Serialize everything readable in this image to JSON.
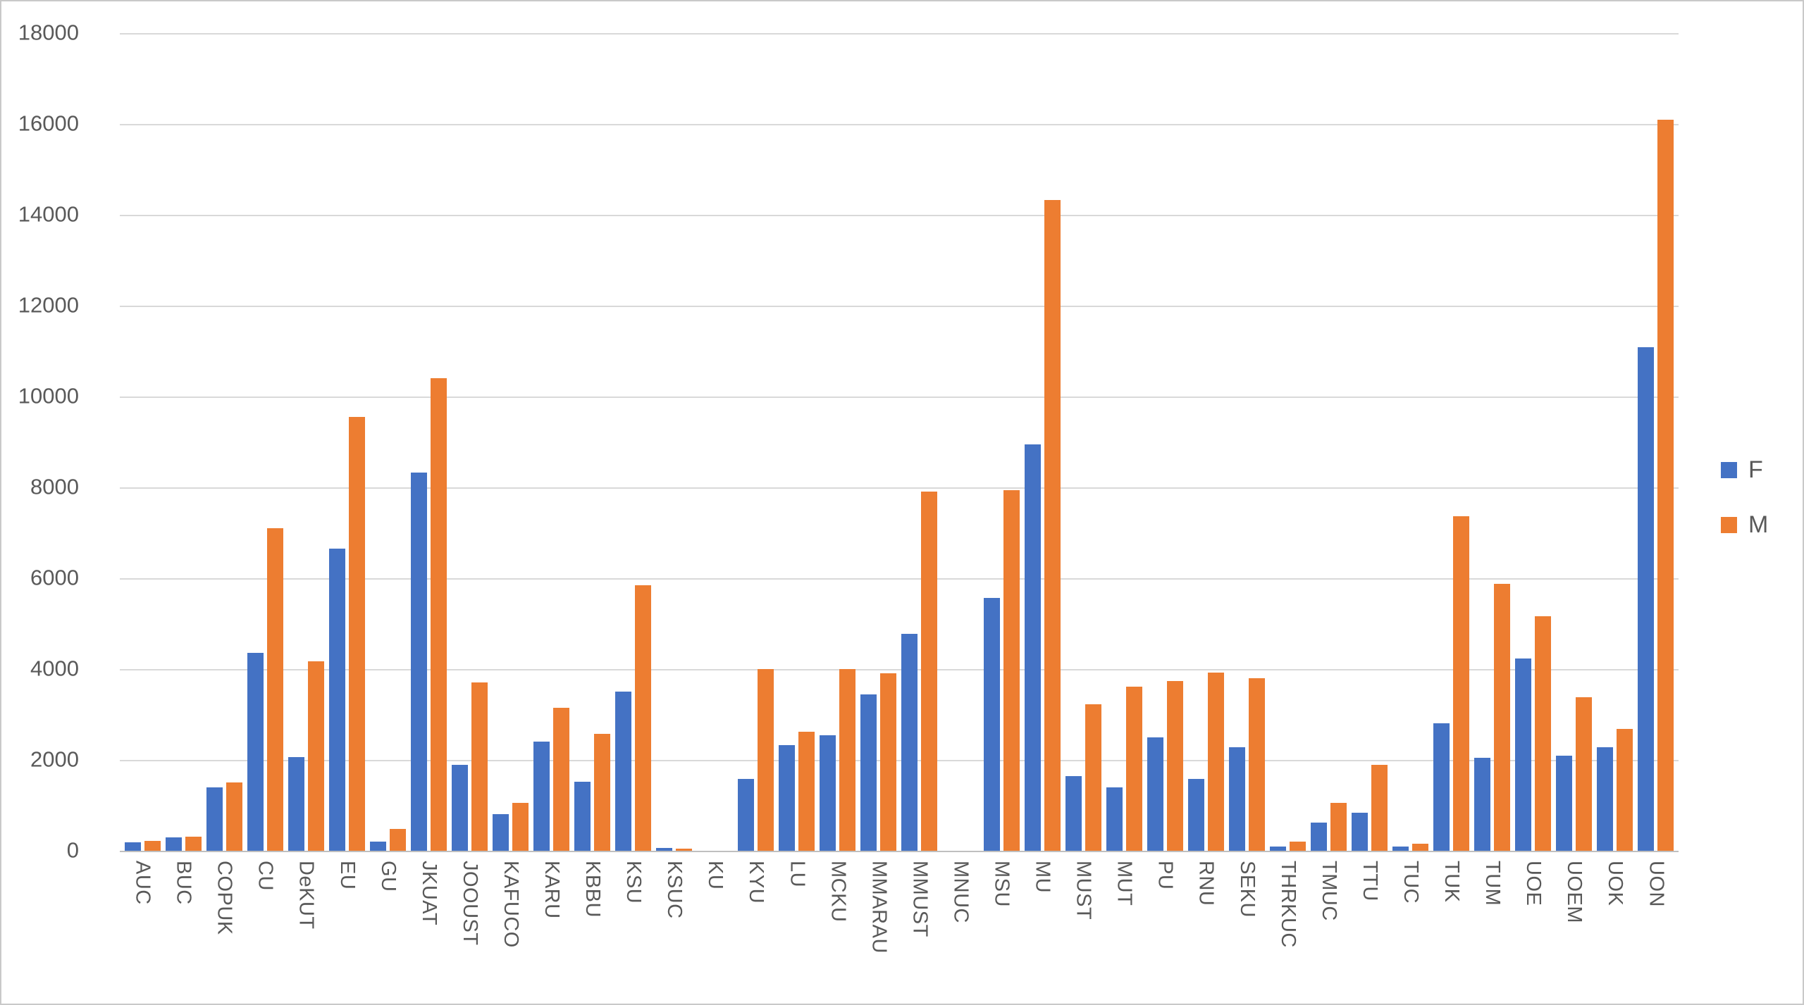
{
  "chart": {
    "background": "#ffffff",
    "frame_border_color": "#c9c9c9",
    "gridline_color": "#d9d9d9",
    "axis_line_color": "#bfbfbf",
    "tick_label_color": "#595959",
    "series_f_color": "#4472C4",
    "series_m_color": "#ED7D31"
  },
  "legend": {
    "items": [
      {
        "label": "F",
        "color": "#4472C4"
      },
      {
        "label": "M",
        "color": "#ED7D31"
      }
    ]
  },
  "chart_data": {
    "type": "bar",
    "title": "",
    "xlabel": "",
    "ylabel": "",
    "ylim": [
      0,
      18000
    ],
    "ytick_step": 2000,
    "yticks": [
      0,
      2000,
      4000,
      6000,
      8000,
      10000,
      12000,
      14000,
      16000,
      18000
    ],
    "grid": true,
    "legend_position": "right",
    "categories": [
      "AUC",
      "BUC",
      "COPUK",
      "CU",
      "DeKUT",
      "EU",
      "GU",
      "JKUAT",
      "JOOUST",
      "KAFUCO",
      "KARU",
      "KBBU",
      "KSU",
      "KSUC",
      "KU",
      "KYU",
      "LU",
      "MCKU",
      "MMARAU",
      "MMUST",
      "MNUC",
      "MSU",
      "MU",
      "MUST",
      "MUT",
      "PU",
      "RNU",
      "SEKU",
      "THRKUC",
      "TMUC",
      "TTU",
      "TUC",
      "TUK",
      "TUM",
      "UOE",
      "UOEM",
      "UOK",
      "UON"
    ],
    "series": [
      {
        "name": "F",
        "color": "#4472C4",
        "values": [
          180,
          290,
          1400,
          4360,
          2060,
          6650,
          210,
          8330,
          1900,
          800,
          2400,
          1520,
          3500,
          60,
          0,
          1580,
          2330,
          2550,
          3450,
          4770,
          0,
          5560,
          8950,
          1650,
          1400,
          2500,
          1580,
          2280,
          100,
          620,
          840,
          100,
          2800,
          2050,
          4240,
          2100,
          2280,
          11080
        ]
      },
      {
        "name": "M",
        "color": "#ED7D31",
        "values": [
          220,
          310,
          1500,
          7100,
          4170,
          9550,
          480,
          10400,
          3700,
          1050,
          3150,
          2580,
          5850,
          50,
          0,
          4000,
          2620,
          4000,
          3900,
          7900,
          0,
          7940,
          14320,
          3230,
          3610,
          3740,
          3920,
          3800,
          200,
          1050,
          1900,
          150,
          7360,
          5880,
          5160,
          3380,
          2690,
          16100
        ]
      }
    ]
  }
}
